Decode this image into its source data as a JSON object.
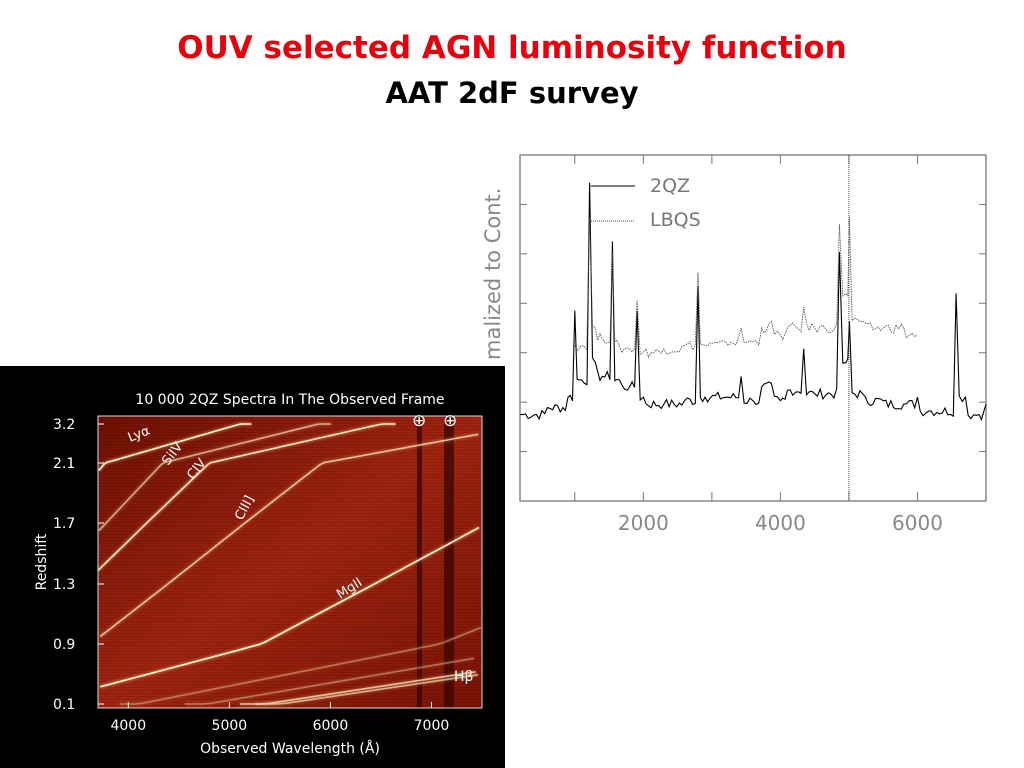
{
  "slide": {
    "title": "OUV selected AGN luminosity function",
    "subtitle": "AAT 2dF survey"
  },
  "chart_data": [
    {
      "type": "line",
      "ylabel": "malized to Cont.",
      "xticks": [
        "2000",
        "4000",
        "6000"
      ],
      "xlim": [
        200,
        7000
      ],
      "legend": {
        "position": "top",
        "entries": [
          {
            "name": "2QZ",
            "style": "solid"
          },
          {
            "name": "LBQS",
            "style": "dotted"
          }
        ]
      },
      "marker_line_x": 5000,
      "series": [
        {
          "name": "2QZ",
          "color": "#000000",
          "points": [
            [
              200,
              0.25
            ],
            [
              600,
              0.27
            ],
            [
              900,
              0.3
            ],
            [
              1000,
              0.55
            ],
            [
              1100,
              0.35
            ],
            [
              1216,
              0.92
            ],
            [
              1300,
              0.4
            ],
            [
              1400,
              0.36
            ],
            [
              1549,
              0.75
            ],
            [
              1650,
              0.35
            ],
            [
              1800,
              0.33
            ],
            [
              1909,
              0.55
            ],
            [
              2000,
              0.3
            ],
            [
              2300,
              0.28
            ],
            [
              2600,
              0.29
            ],
            [
              2798,
              0.62
            ],
            [
              2900,
              0.3
            ],
            [
              3200,
              0.3
            ],
            [
              3426,
              0.36
            ],
            [
              3600,
              0.29
            ],
            [
              3727,
              0.33
            ],
            [
              3869,
              0.34
            ],
            [
              4000,
              0.29
            ],
            [
              4102,
              0.32
            ],
            [
              4340,
              0.44
            ],
            [
              4500,
              0.31
            ],
            [
              4861,
              0.72
            ],
            [
              4959,
              0.4
            ],
            [
              5007,
              0.52
            ],
            [
              5200,
              0.31
            ],
            [
              5500,
              0.29
            ],
            [
              5800,
              0.28
            ],
            [
              6000,
              0.3
            ],
            [
              6200,
              0.26
            ],
            [
              6563,
              0.6
            ],
            [
              6700,
              0.3
            ],
            [
              6900,
              0.25
            ],
            [
              7000,
              0.28
            ]
          ]
        },
        {
          "name": "LBQS",
          "color": "#555555",
          "points": [
            [
              1000,
              0.45
            ],
            [
              1216,
              0.82
            ],
            [
              1300,
              0.5
            ],
            [
              1400,
              0.47
            ],
            [
              1549,
              0.72
            ],
            [
              1650,
              0.45
            ],
            [
              1800,
              0.44
            ],
            [
              1909,
              0.58
            ],
            [
              2000,
              0.43
            ],
            [
              2300,
              0.44
            ],
            [
              2600,
              0.45
            ],
            [
              2798,
              0.66
            ],
            [
              2900,
              0.45
            ],
            [
              3200,
              0.46
            ],
            [
              3426,
              0.5
            ],
            [
              3600,
              0.46
            ],
            [
              3727,
              0.5
            ],
            [
              3869,
              0.52
            ],
            [
              4000,
              0.48
            ],
            [
              4102,
              0.5
            ],
            [
              4340,
              0.56
            ],
            [
              4500,
              0.5
            ],
            [
              4861,
              0.8
            ],
            [
              4959,
              0.6
            ],
            [
              5007,
              0.82
            ],
            [
              5200,
              0.52
            ],
            [
              5500,
              0.5
            ],
            [
              5800,
              0.5
            ],
            [
              6000,
              0.48
            ]
          ]
        }
      ]
    },
    {
      "type": "heatmap",
      "title": "10 000 2QZ Spectra In The Observed Frame",
      "xlabel": "Observed Wavelength (Å)",
      "ylabel": "Redshift",
      "xticks": [
        "4000",
        "5000",
        "6000",
        "7000"
      ],
      "yticks": [
        "3.2",
        "2.1",
        "1.7",
        "1.3",
        "0.9",
        "0.1"
      ],
      "line_labels": [
        "Lyα",
        "SiIV",
        "CIV",
        "CIII]",
        "MgII",
        "Hβ"
      ],
      "symbols": [
        "⊕",
        "⊕"
      ],
      "colors": {
        "background": "#9a1a08",
        "dark": "#4a0800",
        "bright": "#fff2c8"
      }
    }
  ]
}
